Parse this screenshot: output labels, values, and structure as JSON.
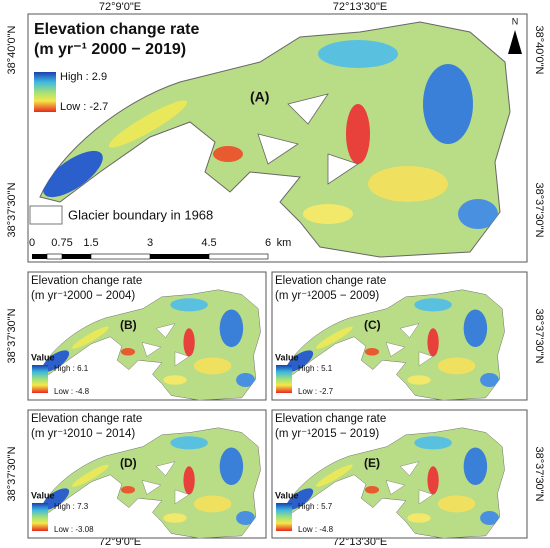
{
  "map": {
    "top_coords": [
      "72°9'0\"E",
      "72°13'30\"E"
    ],
    "bottom_coords": [
      "72°9'0\"E",
      "72°13'30\"E"
    ],
    "left_coords": [
      "38°40'0\"N",
      "38°37'30\"N",
      "38°37'30\"N",
      "38°37'30\"N"
    ],
    "right_coords": [
      "38°40'0\"N",
      "38°37'30\"N",
      "38°37'30\"N",
      "38°37'30\"N"
    ],
    "main": {
      "title": "Elevation change rate",
      "subtitle": "(m yr⁻¹ 2000 − 2019)",
      "high": "High : 2.9",
      "low": "Low : -2.7",
      "label": "(A)",
      "boundary_legend": "Glacier boundary in 1968",
      "scale": [
        "0",
        "0.75",
        "1.5",
        "3",
        "4.5",
        "6"
      ],
      "scale_unit": "km",
      "north": "N"
    },
    "panels": [
      {
        "title": "Elevation change rate",
        "subtitle": "(m yr⁻¹2000 − 2004)",
        "label": "(B)",
        "legend_title": "Value",
        "high": "High : 6.1",
        "low": "Low : -4.8"
      },
      {
        "title": "Elevation change rate",
        "subtitle": "(m yr⁻¹2005 − 2009)",
        "label": "(C)",
        "legend_title": "Value",
        "high": "High : 5.1",
        "low": "Low : -2.7"
      },
      {
        "title": "Elevation change rate",
        "subtitle": "(m yr⁻¹2010 − 2014)",
        "label": "(D)",
        "legend_title": "Value",
        "high": "High : 7.3",
        "low": "Low : -3.08"
      },
      {
        "title": "Elevation change rate",
        "subtitle": "(m yr⁻¹2015 − 2019)",
        "label": "(E)",
        "legend_title": "Value",
        "high": "High : 5.7",
        "low": "Low : -4.8"
      }
    ]
  }
}
